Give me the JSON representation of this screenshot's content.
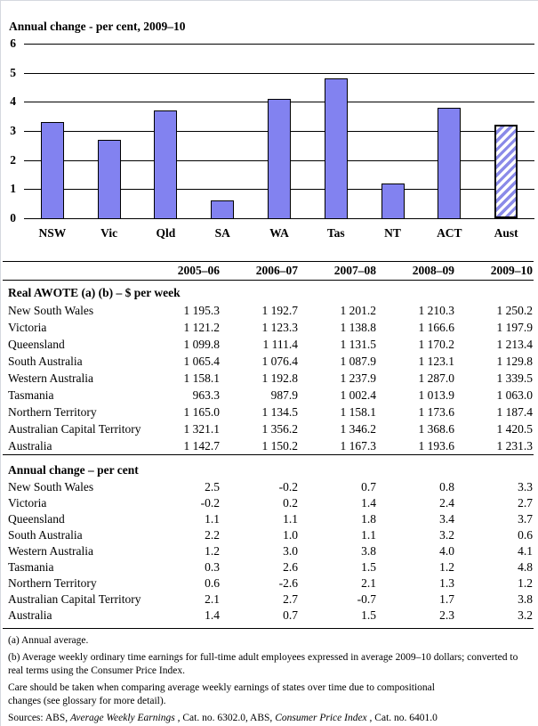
{
  "chart_data": [
    {
      "type": "bar",
      "title": "Annual change - per cent, 2009–10",
      "categories": [
        "NSW",
        "Vic",
        "Qld",
        "SA",
        "WA",
        "Tas",
        "NT",
        "ACT",
        "Aust"
      ],
      "values": [
        3.3,
        2.7,
        3.7,
        0.6,
        4.1,
        4.8,
        1.2,
        3.8,
        3.2
      ],
      "xlabel": "",
      "ylabel": "per cent",
      "ylim": [
        0,
        6
      ],
      "yticks": [
        0,
        1,
        2,
        3,
        4,
        5,
        6
      ],
      "grid": true,
      "legend": "none",
      "bar_color": "#8282f0",
      "hatched_category": "Aust"
    },
    {
      "type": "table",
      "columns": [
        "2005–06",
        "2006–07",
        "2007–08",
        "2008–09",
        "2009–10"
      ],
      "sections": [
        {
          "header": "Real AWOTE (a) (b) – $ per week",
          "rows": [
            {
              "label": "New South Wales",
              "values": [
                "1 195.3",
                "1 192.7",
                "1 201.2",
                "1 210.3",
                "1 250.2"
              ]
            },
            {
              "label": "Victoria",
              "values": [
                "1 121.2",
                "1 123.3",
                "1 138.8",
                "1 166.6",
                "1 197.9"
              ]
            },
            {
              "label": "Queensland",
              "values": [
                "1 099.8",
                "1 111.4",
                "1 131.5",
                "1 170.2",
                "1 213.4"
              ]
            },
            {
              "label": "South Australia",
              "values": [
                "1 065.4",
                "1 076.4",
                "1 087.9",
                "1 123.1",
                "1 129.8"
              ]
            },
            {
              "label": "Western Australia",
              "values": [
                "1 158.1",
                "1 192.8",
                "1 237.9",
                "1 287.0",
                "1 339.5"
              ]
            },
            {
              "label": "Tasmania",
              "values": [
                "963.3",
                "987.9",
                "1 002.4",
                "1 013.9",
                "1 063.0"
              ]
            },
            {
              "label": "Northern Territory",
              "values": [
                "1 165.0",
                "1 134.5",
                "1 158.1",
                "1 173.6",
                "1 187.4"
              ]
            },
            {
              "label": "Australian Capital Territory",
              "values": [
                "1 321.1",
                "1 356.2",
                "1 346.2",
                "1 368.6",
                "1 420.5"
              ]
            },
            {
              "label": "Australia",
              "values": [
                "1 142.7",
                "1 150.2",
                "1 167.3",
                "1 193.6",
                "1 231.3"
              ]
            }
          ]
        },
        {
          "header": "Annual change – per cent",
          "rows": [
            {
              "label": "New South Wales",
              "values": [
                "2.5",
                "-0.2",
                "0.7",
                "0.8",
                "3.3"
              ]
            },
            {
              "label": "Victoria",
              "values": [
                "-0.2",
                "0.2",
                "1.4",
                "2.4",
                "2.7"
              ]
            },
            {
              "label": "Queensland",
              "values": [
                "1.1",
                "1.1",
                "1.8",
                "3.4",
                "3.7"
              ]
            },
            {
              "label": "South Australia",
              "values": [
                "2.2",
                "1.0",
                "1.1",
                "3.2",
                "0.6"
              ]
            },
            {
              "label": "Western Australia",
              "values": [
                "1.2",
                "3.0",
                "3.8",
                "4.0",
                "4.1"
              ]
            },
            {
              "label": "Tasmania",
              "values": [
                "0.3",
                "2.6",
                "1.5",
                "1.2",
                "4.8"
              ]
            },
            {
              "label": "Northern Territory",
              "values": [
                "0.6",
                "-2.6",
                "2.1",
                "1.3",
                "1.2"
              ]
            },
            {
              "label": "Australian Capital Territory",
              "values": [
                "2.1",
                "2.7",
                "-0.7",
                "1.7",
                "3.8"
              ]
            },
            {
              "label": "Australia",
              "values": [
                "1.4",
                "0.7",
                "1.5",
                "2.3",
                "3.2"
              ]
            }
          ]
        }
      ]
    }
  ],
  "footnotes": [
    "(a) Annual average.",
    "(b) Average weekly ordinary time earnings for full-time adult employees expressed in average 2009–10 dollars; converted to\nreal terms using the Consumer Price Index.",
    "Care should be taken when comparing average weekly earnings of states over time due to compositional\nchanges (see glossary for more detail)."
  ],
  "sources_segments": [
    {
      "text": "Sources: ABS, ",
      "italic": false
    },
    {
      "text": "Average Weekly Earnings",
      "italic": true
    },
    {
      "text": " , Cat. no. 6302.0,  ABS, ",
      "italic": false
    },
    {
      "text": "Consumer Price Index",
      "italic": true
    },
    {
      "text": " , Cat. no. 6401.0",
      "italic": false
    }
  ]
}
